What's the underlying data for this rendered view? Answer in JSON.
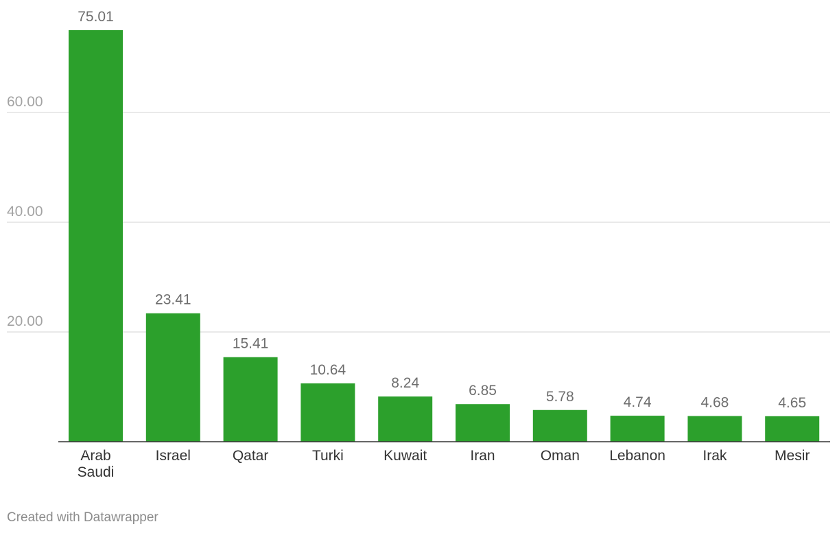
{
  "footer": {
    "credit": "Created with Datawrapper"
  },
  "colors": {
    "bar": "#2ca02c",
    "grid": "#e2e2e2",
    "axis": "#333333",
    "tick_label": "#a3a3a3",
    "value_label": "#6e6e6e",
    "category_label": "#333333"
  },
  "chart_data": {
    "type": "bar",
    "categories": [
      [
        "Arab",
        "Saudi"
      ],
      [
        "Israel"
      ],
      [
        "Qatar"
      ],
      [
        "Turki"
      ],
      [
        "Kuwait"
      ],
      [
        "Iran"
      ],
      [
        "Oman"
      ],
      [
        "Lebanon"
      ],
      [
        "Irak"
      ],
      [
        "Mesir"
      ]
    ],
    "values": [
      75.01,
      23.41,
      15.41,
      10.64,
      8.24,
      6.85,
      5.78,
      4.74,
      4.68,
      4.65
    ],
    "value_labels": [
      "75.01",
      "23.41",
      "15.41",
      "10.64",
      "8.24",
      "6.85",
      "5.78",
      "4.74",
      "4.68",
      "4.65"
    ],
    "yticks": [
      20,
      40,
      60
    ],
    "ytick_labels": [
      "20.00",
      "40.00",
      "60.00"
    ],
    "ylim": [
      0,
      75.01
    ],
    "grid": true,
    "legend": false,
    "title": "",
    "xlabel": "",
    "ylabel": ""
  }
}
